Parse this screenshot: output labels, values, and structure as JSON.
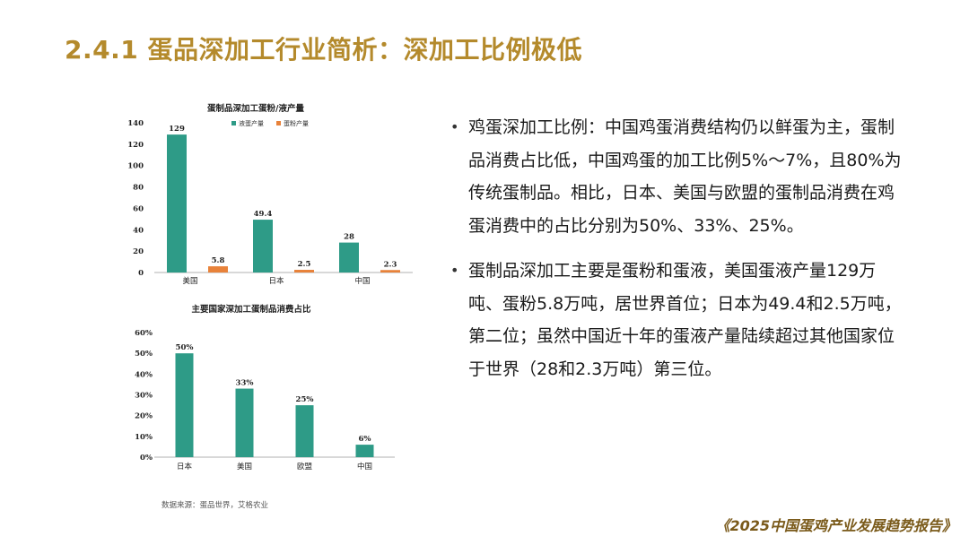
{
  "slide": {
    "title": "2.4.1 蛋品深加工行业简析：深加工比例极低",
    "source": "数据来源：蛋品世界，艾格农业",
    "footer": "《2025中国蛋鸡产业发展趋势报告》",
    "bullets": [
      "鸡蛋深加工比例：中国鸡蛋消费结构仍以鲜蛋为主，蛋制品消费占比低，中国鸡蛋的加工比例5%～7%，且80%为传统蛋制品。相比，日本、美国与欧盟的蛋制品消费在鸡蛋消费中的占比分别为50%、33%、25%。",
      "蛋制品深加工主要是蛋粉和蛋液，美国蛋液产量129万吨、蛋粉5.8万吨，居世界首位；日本为49.4和2.5万吨，第二位；虽然中国近十年的蛋液产量陆续超过其他国家位于世界（28和2.3万吨）第三位。"
    ]
  },
  "colors": {
    "teal": "#2e9b87",
    "orange": "#e8823a",
    "title": "#b48a2c"
  },
  "chart_data": [
    {
      "type": "bar",
      "title": "蛋制品深加工蛋粉/液产量",
      "categories": [
        "美国",
        "日本",
        "中国"
      ],
      "series": [
        {
          "name": "液蛋产量",
          "values": [
            129,
            49.4,
            28
          ],
          "labels": [
            "129",
            "49.4",
            "28"
          ]
        },
        {
          "name": "蛋粉产量",
          "values": [
            5.8,
            2.5,
            2.3
          ],
          "labels": [
            "5.8",
            "2.5",
            "2.3"
          ]
        }
      ],
      "ylim": [
        0,
        140
      ],
      "yticks": [
        "0",
        "20",
        "40",
        "60",
        "80",
        "100",
        "120",
        "140"
      ],
      "legend": "top-center",
      "grid": false
    },
    {
      "type": "bar",
      "title": "主要国家深加工蛋制品消费占比",
      "categories": [
        "日本",
        "美国",
        "欧盟",
        "中国"
      ],
      "values": [
        50,
        33,
        25,
        6
      ],
      "labels": [
        "50%",
        "33%",
        "25%",
        "6%"
      ],
      "ylim": [
        0,
        60
      ],
      "yticks": [
        "0%",
        "10%",
        "20%",
        "30%",
        "40%",
        "50%",
        "60%"
      ],
      "grid": false
    }
  ]
}
